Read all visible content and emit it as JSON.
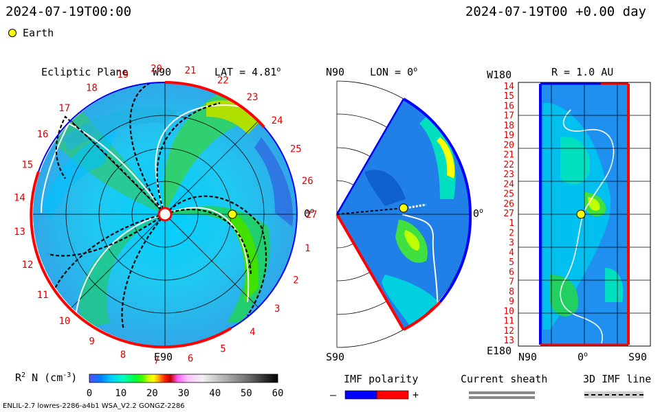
{
  "header": {
    "timestamp_left": "2024-07-19T00:00",
    "timestamp_right": "2024-07-19T00 +0.00 day",
    "legend_label": "Earth"
  },
  "panels": {
    "ecliptic": {
      "title": "Ecliptic Plane",
      "lat_label": "LAT = 4.81",
      "deg_mark": "o",
      "top_label": "W90",
      "bottom_label": "E90",
      "right_label": "0",
      "carrington_numbers": [
        "1",
        "2",
        "3",
        "4",
        "5",
        "6",
        "7",
        "8",
        "9",
        "10",
        "11",
        "12",
        "13",
        "14",
        "15",
        "16",
        "17",
        "18",
        "19",
        "20",
        "21",
        "22",
        "23",
        "24",
        "25",
        "26",
        "27"
      ]
    },
    "meridional": {
      "top_label": "N90",
      "lon_label": "LON = 0",
      "deg_mark": "o",
      "bottom_label": "S90",
      "right_label": "0"
    },
    "radial": {
      "title": "R = 1.0 AU",
      "top_left_label": "W180",
      "bottom_left_label": "E180",
      "x_labels": [
        "N90",
        "0",
        "S90"
      ],
      "deg_mark": "o",
      "y_labels": [
        "14",
        "15",
        "16",
        "17",
        "18",
        "19",
        "20",
        "21",
        "22",
        "23",
        "24",
        "25",
        "26",
        "27",
        "1",
        "2",
        "3",
        "4",
        "5",
        "6",
        "7",
        "8",
        "9",
        "10",
        "11",
        "12",
        "13"
      ]
    }
  },
  "colorbar": {
    "label": "R",
    "label_sup": "2",
    "label_rest": "N (cm",
    "label_exp": "-3",
    "label_end": ")",
    "ticks": [
      "0",
      "10",
      "20",
      "30",
      "40",
      "50",
      "60"
    ],
    "stops": [
      "#5050ff",
      "#0080ff",
      "#00d0ff",
      "#00ffc0",
      "#00ff40",
      "#40ff00",
      "#c0ff00",
      "#ffff00",
      "#ffa000",
      "#ff2000",
      "#c00000",
      "#ff60ff",
      "#ffc0ff",
      "#f0f0f0",
      "#b0b0b0",
      "#707070",
      "#303030",
      "#000000"
    ]
  },
  "legend": {
    "imf_title": "IMF polarity",
    "imf_minus": "–",
    "imf_plus": "+",
    "sheath_title": "Current sheath",
    "imf_line_title": "3D IMF line",
    "colors": {
      "negative": "#0000ff",
      "positive": "#ff0000",
      "sheath": "#888888",
      "earth": "#ffff00"
    }
  },
  "footer": {
    "model_info": "ENLIL-2.7 lowres-2286-a4b1 WSA_V2.2 GONGZ-2286"
  }
}
